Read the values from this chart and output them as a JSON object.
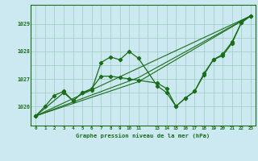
{
  "title": "Graphe pression niveau de la mer (hPa)",
  "bg_color": "#cce8f0",
  "grid_color": "#99ccbb",
  "line_color": "#1a6e1a",
  "xlim": [
    -0.5,
    23.5
  ],
  "ylim": [
    1025.3,
    1029.7
  ],
  "yticks": [
    1026,
    1027,
    1028,
    1029
  ],
  "grid_y": [
    1026,
    1026.5,
    1027,
    1027.5,
    1028,
    1028.5,
    1029
  ],
  "series_main": {
    "x": [
      0,
      1,
      2,
      3,
      4,
      5,
      6,
      7,
      8,
      9,
      10,
      11,
      13,
      14,
      15,
      16,
      17,
      18,
      19,
      20,
      21,
      22,
      23
    ],
    "y": [
      1025.65,
      1026.0,
      1026.4,
      1026.55,
      1026.2,
      1026.5,
      1026.6,
      1027.6,
      1027.8,
      1027.7,
      1028.0,
      1027.75,
      1026.75,
      1026.5,
      1026.0,
      1026.3,
      1026.55,
      1027.15,
      1027.7,
      1027.85,
      1028.3,
      1029.05,
      1029.3
    ]
  },
  "series_secondary": {
    "x": [
      0,
      3,
      4,
      5,
      6,
      7,
      8,
      9,
      10,
      11,
      13,
      14,
      15,
      16,
      17,
      18,
      19,
      20,
      21,
      22,
      23
    ],
    "y": [
      1025.65,
      1026.5,
      1026.2,
      1026.5,
      1026.65,
      1027.1,
      1027.1,
      1027.05,
      1027.0,
      1026.95,
      1026.85,
      1026.65,
      1026.0,
      1026.3,
      1026.55,
      1027.2,
      1027.7,
      1027.9,
      1028.35,
      1029.05,
      1029.3
    ]
  },
  "series_trend1": {
    "x": [
      0,
      23
    ],
    "y": [
      1025.65,
      1029.3
    ]
  },
  "series_trend2": {
    "x": [
      0,
      11,
      23
    ],
    "y": [
      1025.65,
      1027.05,
      1029.3
    ]
  },
  "series_trend3": {
    "x": [
      0,
      11,
      23
    ],
    "y": [
      1025.65,
      1026.9,
      1029.3
    ]
  }
}
